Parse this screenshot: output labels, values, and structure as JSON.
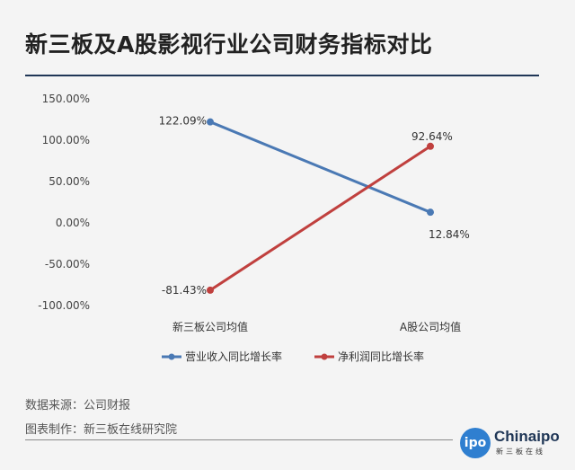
{
  "header": {
    "title": "新三板及A股影视行业公司财务指标对比"
  },
  "footer": {
    "source": "数据来源：公司财报",
    "made_by": "图表制作：新三板在线研究院"
  },
  "logo": {
    "badge": "ipo",
    "name": "Chinaipo",
    "subtitle": "新三板在线"
  },
  "chart_data": {
    "type": "line",
    "categories": [
      "新三板公司均值",
      "A股公司均值"
    ],
    "ylim": [
      -100,
      150
    ],
    "y_ticks": [
      "150.00%",
      "100.00%",
      "50.00%",
      "0.00%",
      "-50.00%",
      "-100.00%"
    ],
    "grid": false,
    "legend_position": "bottom",
    "series": [
      {
        "name": "营业收入同比增长率",
        "values": [
          122.09,
          12.84
        ],
        "labels": [
          "122.09%",
          "12.84%"
        ],
        "color": "#4a79b4"
      },
      {
        "name": "净利润同比增长率",
        "values": [
          -81.43,
          92.64
        ],
        "labels": [
          "-81.43%",
          "92.64%"
        ],
        "color": "#c0403e"
      }
    ]
  }
}
